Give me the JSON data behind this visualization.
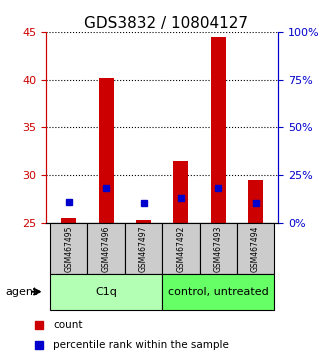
{
  "title": "GDS3832 / 10804127",
  "samples": [
    "GSM467495",
    "GSM467496",
    "GSM467497",
    "GSM467492",
    "GSM467493",
    "GSM467494"
  ],
  "groups": [
    {
      "label": "C1q",
      "indices": [
        0,
        1,
        2
      ],
      "color": "#b3ffb3"
    },
    {
      "label": "control, untreated",
      "indices": [
        3,
        4,
        5
      ],
      "color": "#66ff66"
    }
  ],
  "red_bars": [
    25.5,
    40.2,
    25.3,
    31.5,
    44.5,
    29.5
  ],
  "blue_markers": [
    27.2,
    28.7,
    27.1,
    27.6,
    28.7,
    27.1
  ],
  "ylim_left": [
    25,
    45
  ],
  "ylim_right": [
    0,
    100
  ],
  "yticks_left": [
    25,
    30,
    35,
    40,
    45
  ],
  "yticks_right": [
    0,
    25,
    50,
    75,
    100
  ],
  "ytick_labels_right": [
    "0%",
    "25%",
    "50%",
    "75%",
    "100%"
  ],
  "red_color": "#cc0000",
  "blue_color": "#0000cc",
  "bar_width": 0.4,
  "left_axis_color": "#cc0000",
  "right_axis_color": "#0000cc",
  "agent_label": "agent",
  "legend_count": "count",
  "legend_percentile": "percentile rank within the sample",
  "grid_color": "black",
  "sample_box_color": "#cccccc",
  "title_fontsize": 11
}
